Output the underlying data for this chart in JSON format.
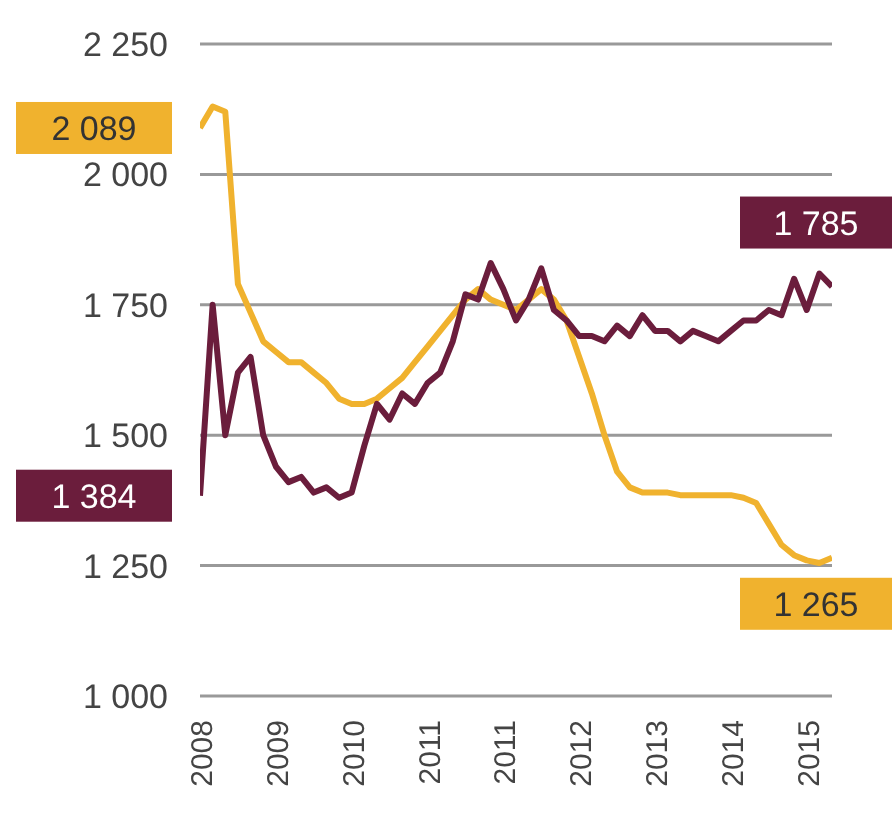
{
  "chart_data": {
    "type": "line",
    "categories": [
      "2008",
      null,
      null,
      null,
      null,
      null,
      "2009",
      null,
      null,
      null,
      null,
      null,
      "2010",
      null,
      null,
      null,
      null,
      null,
      "2011",
      null,
      null,
      null,
      null,
      null,
      "2011",
      null,
      null,
      null,
      null,
      null,
      "2012",
      null,
      null,
      null,
      null,
      null,
      "2013",
      null,
      null,
      null,
      null,
      null,
      "2014",
      null,
      null,
      null,
      null,
      null,
      "2015",
      null,
      null
    ],
    "series": [
      {
        "color": "#f0b22e",
        "values": [
          2089,
          2130,
          2120,
          1790,
          1735,
          1680,
          1660,
          1640,
          1640,
          1620,
          1600,
          1570,
          1560,
          1560,
          1570,
          1590,
          1610,
          1640,
          1670,
          1700,
          1730,
          1760,
          1780,
          1760,
          1750,
          1740,
          1760,
          1780,
          1760,
          1720,
          1650,
          1580,
          1500,
          1430,
          1400,
          1390,
          1390,
          1390,
          1385,
          1385,
          1385,
          1385,
          1385,
          1380,
          1370,
          1330,
          1290,
          1270,
          1260,
          1255,
          1265
        ],
        "value_labels": [
          "2 089",
          null,
          null,
          null,
          null,
          null,
          null,
          null,
          null,
          null,
          null,
          null,
          null,
          null,
          null,
          null,
          null,
          null,
          null,
          null,
          null,
          null,
          null,
          null,
          null,
          null,
          null,
          null,
          null,
          null,
          null,
          null,
          null,
          null,
          null,
          null,
          null,
          null,
          null,
          null,
          null,
          null,
          null,
          null,
          null,
          null,
          null,
          null,
          null,
          null,
          "1 265"
        ]
      },
      {
        "color": "#6b1d3c",
        "values": [
          1384,
          1750,
          1500,
          1620,
          1650,
          1500,
          1440,
          1410,
          1420,
          1390,
          1400,
          1380,
          1390,
          1480,
          1560,
          1530,
          1580,
          1560,
          1600,
          1620,
          1680,
          1770,
          1760,
          1830,
          1780,
          1720,
          1760,
          1820,
          1740,
          1720,
          1690,
          1690,
          1680,
          1710,
          1690,
          1730,
          1700,
          1700,
          1680,
          1700,
          1690,
          1680,
          1700,
          1720,
          1720,
          1740,
          1730,
          1800,
          1740,
          1810,
          1785
        ],
        "value_labels": [
          "1 384",
          null,
          null,
          null,
          null,
          null,
          null,
          null,
          null,
          null,
          null,
          null,
          null,
          null,
          null,
          null,
          null,
          null,
          null,
          null,
          null,
          null,
          null,
          null,
          null,
          null,
          null,
          null,
          null,
          null,
          null,
          null,
          null,
          null,
          null,
          null,
          null,
          null,
          null,
          null,
          null,
          null,
          null,
          null,
          null,
          null,
          null,
          null,
          null,
          null,
          "1 785"
        ]
      }
    ],
    "ylim": [
      1000,
      2250
    ],
    "yticks": [
      {
        "value": 1000,
        "label": "1 000"
      },
      {
        "value": 1250,
        "label": "1 250"
      },
      {
        "value": 1500,
        "label": "1 500"
      },
      {
        "value": 1750,
        "label": "1 750"
      },
      {
        "value": 2000,
        "label": "2 000"
      },
      {
        "value": 2250,
        "label": "2 250"
      }
    ],
    "grid": "y",
    "marker": "none",
    "line_style": "solid",
    "legend": false
  }
}
